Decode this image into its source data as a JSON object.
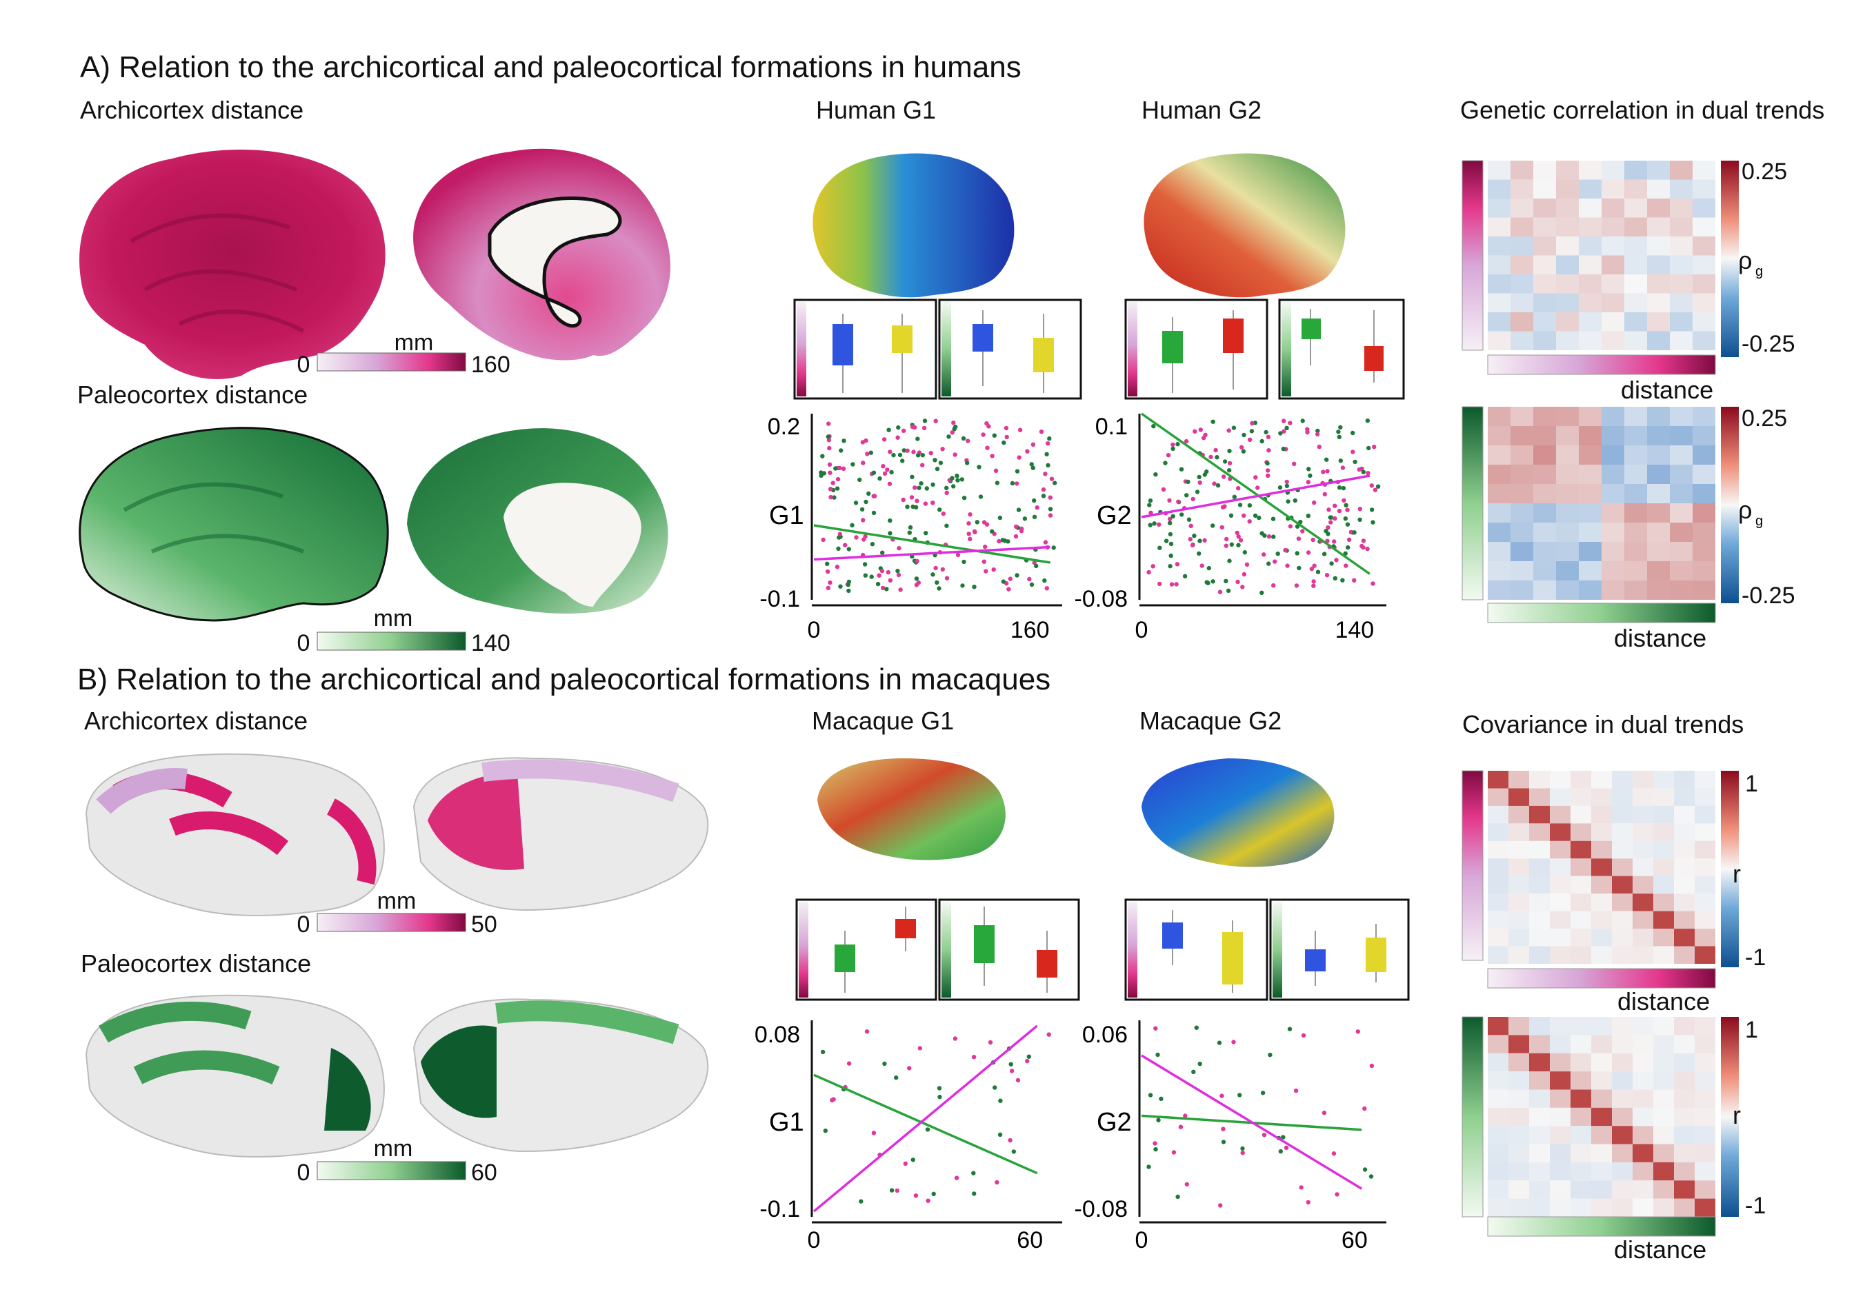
{
  "colors": {
    "magenta_light": "#f1e6f1",
    "magenta_mid": "#e33e8f",
    "magenta_dark": "#8a0b45",
    "green_light": "#eef8ec",
    "green_mid": "#4aa65a",
    "green_dark": "#0e5b2d",
    "blue_box": "#2f55e0",
    "yellow_box": "#e3d62a",
    "green_box": "#28a83a",
    "red_box": "#d8281e",
    "fit_green": "#27a33a",
    "fit_magenta": "#e02ce0",
    "diverging_pos": "#8b0a1e",
    "diverging_neg": "#0d4f8f"
  },
  "sectionA": {
    "title": "A) Relation to the archicortical and paleocortical formations in humans",
    "archi_label": "Archicortex distance",
    "paleo_label": "Paleocortex distance",
    "archi_bar": {
      "min": "0",
      "max": "160",
      "unit": "mm"
    },
    "paleo_bar": {
      "min": "0",
      "max": "140",
      "unit": "mm"
    },
    "g1_title": "Human G1",
    "g2_title": "Human G2",
    "corr_title": "Genetic correlation in dual trends",
    "matrix_symbol": "ρ",
    "matrix_sub": "g",
    "matrix_max": "0.25",
    "matrix_min": "-0.25",
    "matrix_xlabel": "distance"
  },
  "sectionB": {
    "title": "B) Relation to the archicortical and paleocortical formations  in macaques",
    "archi_label": "Archicortex distance",
    "paleo_label": "Paleocortex distance",
    "archi_bar": {
      "min": "0",
      "max": "50",
      "unit": "mm"
    },
    "paleo_bar": {
      "min": "0",
      "max": "60",
      "unit": "mm"
    },
    "g1_title": "Macaque G1",
    "g2_title": "Macaque G2",
    "cov_title": "Covariance in dual trends",
    "matrix_symbol": "r",
    "matrix_max": "1",
    "matrix_min": "-1",
    "matrix_xlabel": "distance"
  },
  "chart_data": [
    {
      "type": "scatter",
      "ylabel": "G1",
      "xlim": [
        0,
        160
      ],
      "ylim": [
        -0.1,
        0.2
      ],
      "x_ticks": [
        "0",
        "160"
      ],
      "y_ticks": [
        "0.2",
        "-0.1"
      ],
      "fits": [
        {
          "color": "green",
          "points": [
            [
              0,
              0.02
            ],
            [
              175,
              -0.04
            ]
          ]
        },
        {
          "color": "magenta",
          "points": [
            [
              0,
              -0.035
            ],
            [
              175,
              -0.015
            ]
          ]
        }
      ]
    },
    {
      "type": "scatter",
      "ylabel": "G2",
      "xlim": [
        0,
        140
      ],
      "ylim": [
        -0.08,
        0.1
      ],
      "x_ticks": [
        "0",
        "140"
      ],
      "y_ticks": [
        "0.1",
        "-0.08"
      ],
      "fits": [
        {
          "color": "green",
          "points": [
            [
              0,
              0.1
            ],
            [
              150,
              -0.055
            ]
          ]
        },
        {
          "color": "magenta",
          "points": [
            [
              0,
              0.0
            ],
            [
              150,
              0.04
            ]
          ]
        }
      ]
    },
    {
      "type": "scatter",
      "ylabel": "G1",
      "xlim": [
        0,
        60
      ],
      "ylim": [
        -0.1,
        0.08
      ],
      "x_ticks": [
        "0",
        "60"
      ],
      "y_ticks": [
        "0.08",
        "-0.1"
      ],
      "fits": [
        {
          "color": "green",
          "points": [
            [
              0,
              0.03
            ],
            [
              62,
              -0.06
            ]
          ]
        },
        {
          "color": "magenta",
          "points": [
            [
              0,
              -0.095
            ],
            [
              62,
              0.075
            ]
          ]
        }
      ]
    },
    {
      "type": "scatter",
      "ylabel": "G2",
      "xlim": [
        0,
        60
      ],
      "ylim": [
        -0.08,
        0.06
      ],
      "x_ticks": [
        "0",
        "60"
      ],
      "y_ticks": [
        "0.06",
        "-0.08"
      ],
      "fits": [
        {
          "color": "green",
          "points": [
            [
              0,
              -0.008
            ],
            [
              62,
              -0.018
            ]
          ]
        },
        {
          "color": "magenta",
          "points": [
            [
              0,
              0.035
            ],
            [
              62,
              -0.06
            ]
          ]
        }
      ]
    }
  ]
}
